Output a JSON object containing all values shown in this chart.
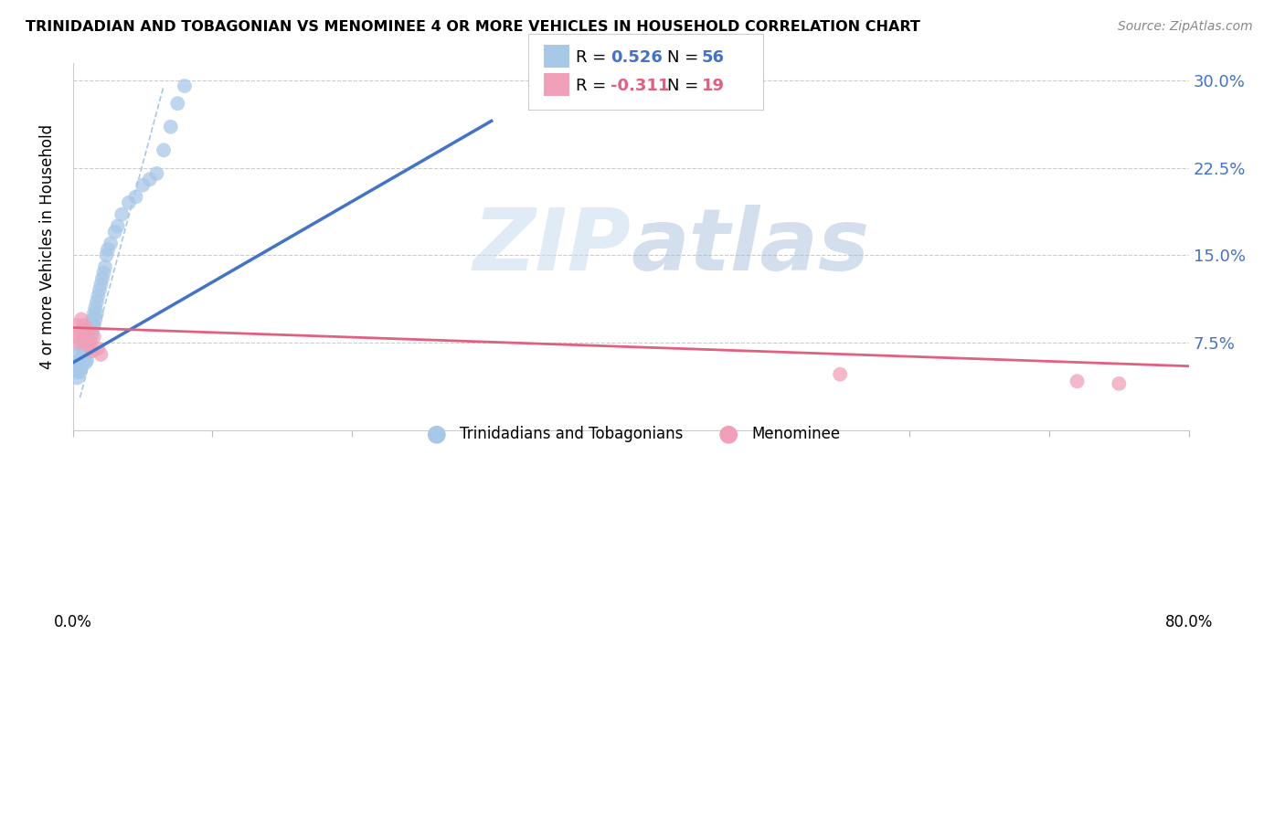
{
  "title": "TRINIDADIAN AND TOBAGONIAN VS MENOMINEE 4 OR MORE VEHICLES IN HOUSEHOLD CORRELATION CHART",
  "source": "Source: ZipAtlas.com",
  "ylabel": "4 or more Vehicles in Household",
  "ytick_values": [
    0.0,
    0.075,
    0.15,
    0.225,
    0.3
  ],
  "ytick_labels": [
    "",
    "7.5%",
    "15.0%",
    "22.5%",
    "30.0%"
  ],
  "xlim": [
    0.0,
    0.8
  ],
  "ylim": [
    0.0,
    0.315
  ],
  "legend_blue_label": "Trinidadians and Tobagonians",
  "legend_pink_label": "Menominee",
  "color_blue": "#a8c8e8",
  "color_pink": "#f0a0b8",
  "line_blue": "#4472c4",
  "line_pink": "#e06080",
  "line_dashed_color": "#a8c8e8",
  "watermark": "ZIPatlas",
  "blue_scatter_x": [
    0.003,
    0.003,
    0.004,
    0.004,
    0.005,
    0.005,
    0.005,
    0.006,
    0.006,
    0.006,
    0.007,
    0.007,
    0.008,
    0.008,
    0.008,
    0.009,
    0.009,
    0.009,
    0.01,
    0.01,
    0.01,
    0.011,
    0.011,
    0.012,
    0.012,
    0.013,
    0.013,
    0.014,
    0.014,
    0.015,
    0.015,
    0.016,
    0.016,
    0.017,
    0.017,
    0.018,
    0.019,
    0.02,
    0.021,
    0.022,
    0.023,
    0.024,
    0.025,
    0.027,
    0.03,
    0.032,
    0.035,
    0.04,
    0.045,
    0.05,
    0.055,
    0.06,
    0.065,
    0.07,
    0.075,
    0.08
  ],
  "blue_scatter_y": [
    0.055,
    0.045,
    0.065,
    0.05,
    0.06,
    0.055,
    0.05,
    0.07,
    0.062,
    0.055,
    0.075,
    0.065,
    0.08,
    0.07,
    0.06,
    0.075,
    0.068,
    0.058,
    0.075,
    0.068,
    0.06,
    0.08,
    0.07,
    0.085,
    0.075,
    0.09,
    0.08,
    0.095,
    0.085,
    0.1,
    0.09,
    0.105,
    0.095,
    0.11,
    0.1,
    0.115,
    0.12,
    0.125,
    0.13,
    0.135,
    0.14,
    0.15,
    0.155,
    0.16,
    0.17,
    0.175,
    0.185,
    0.195,
    0.2,
    0.21,
    0.215,
    0.22,
    0.24,
    0.26,
    0.28,
    0.295
  ],
  "pink_scatter_x": [
    0.002,
    0.003,
    0.004,
    0.005,
    0.006,
    0.007,
    0.008,
    0.009,
    0.01,
    0.011,
    0.012,
    0.013,
    0.014,
    0.015,
    0.018,
    0.02,
    0.55,
    0.72,
    0.75
  ],
  "pink_scatter_y": [
    0.08,
    0.09,
    0.075,
    0.085,
    0.095,
    0.08,
    0.09,
    0.085,
    0.075,
    0.085,
    0.075,
    0.07,
    0.068,
    0.08,
    0.07,
    0.065,
    0.048,
    0.042,
    0.04
  ],
  "blue_line_x": [
    0.0,
    0.3
  ],
  "blue_line_y": [
    0.058,
    0.265
  ],
  "pink_line_x": [
    0.0,
    0.8
  ],
  "pink_line_y": [
    0.088,
    0.055
  ],
  "dashed_line_x": [
    0.005,
    0.065
  ],
  "dashed_line_y": [
    0.028,
    0.295
  ]
}
